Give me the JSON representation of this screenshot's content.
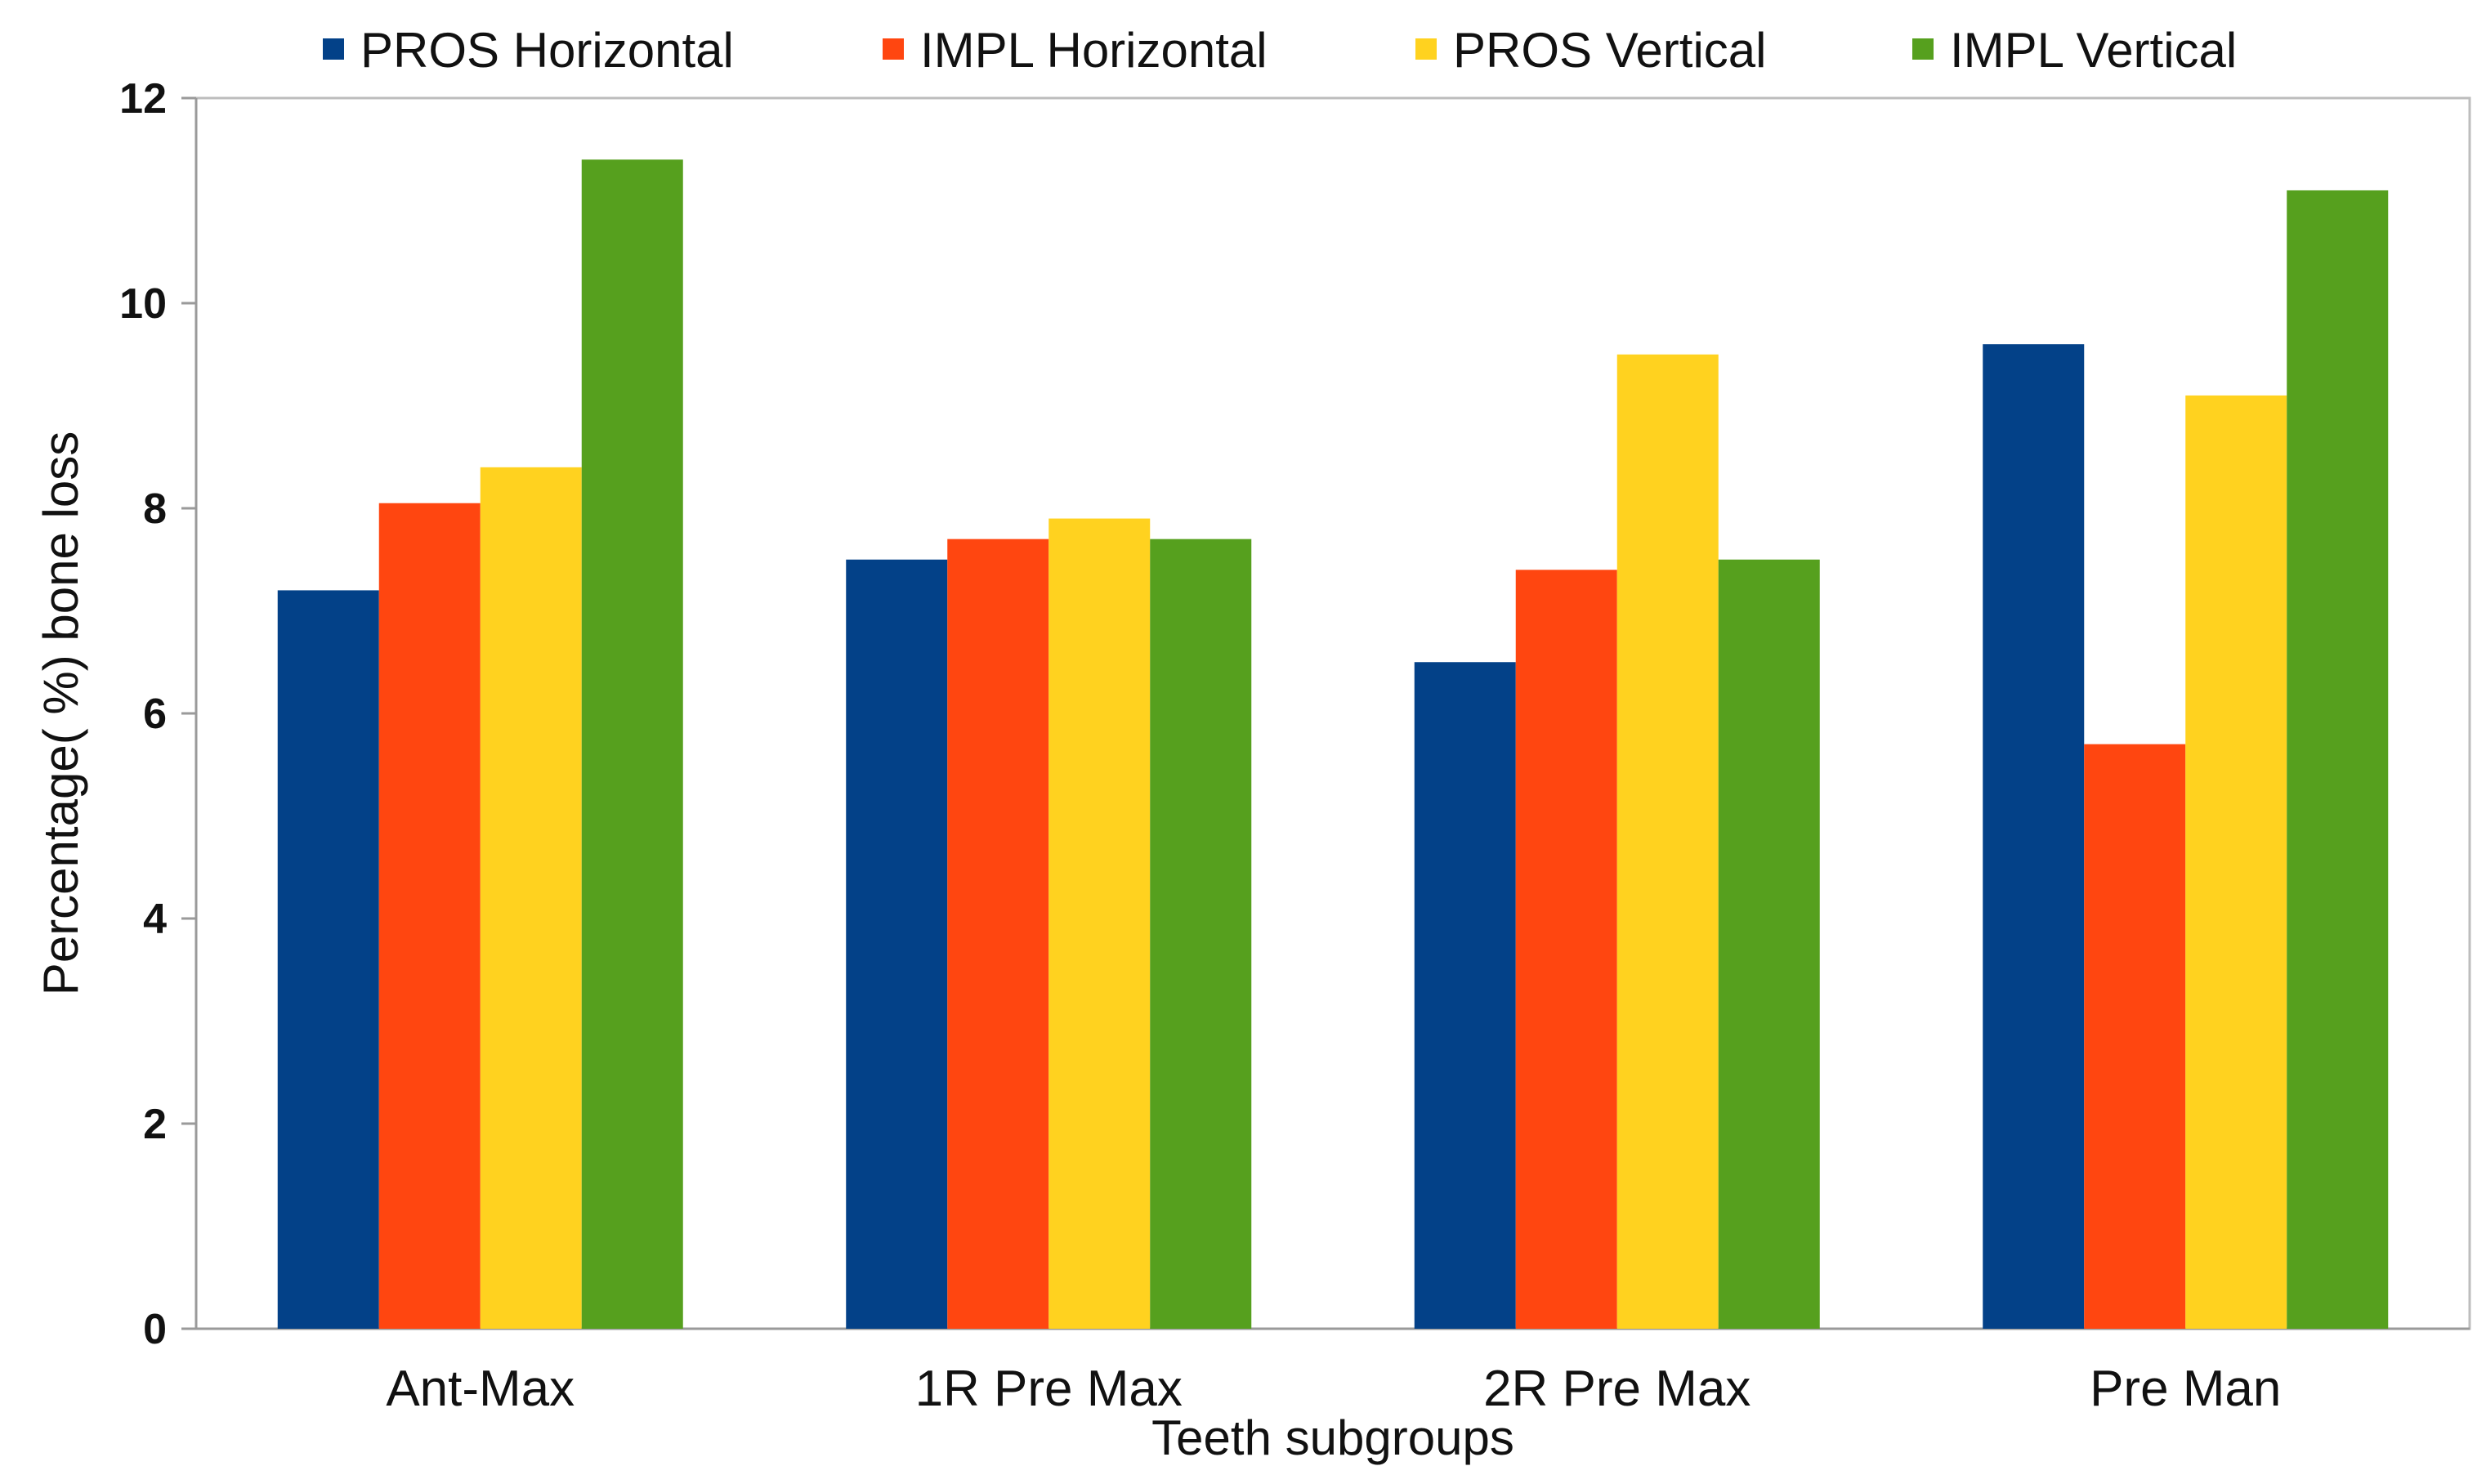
{
  "chart_data": {
    "type": "bar",
    "title": "",
    "xlabel": "Teeth subgroups",
    "ylabel": "Percentage( %) bone loss",
    "categories": [
      "Ant-Max",
      "1R Pre Max",
      "2R Pre Max",
      "Pre Man"
    ],
    "series": [
      {
        "name": "PROS Horizontal",
        "color": "#034188",
        "values": [
          7.2,
          7.5,
          6.5,
          9.6
        ]
      },
      {
        "name": "IMPL Horizontal",
        "color": "#FF4610",
        "values": [
          8.05,
          7.7,
          7.4,
          5.7
        ]
      },
      {
        "name": "PROS Vertical",
        "color": "#FFD21F",
        "values": [
          8.4,
          7.9,
          9.5,
          9.1
        ]
      },
      {
        "name": "IMPL Vertical",
        "color": "#56A01E",
        "values": [
          11.4,
          7.7,
          7.5,
          11.1
        ]
      }
    ],
    "ylim": [
      0,
      12
    ],
    "yticks": [
      0,
      2,
      4,
      6,
      8,
      10,
      12
    ],
    "ytick_labels": [
      "0",
      "2",
      "4",
      "6",
      "8",
      "10",
      "12"
    ],
    "grid": false,
    "legend_position": "top"
  }
}
